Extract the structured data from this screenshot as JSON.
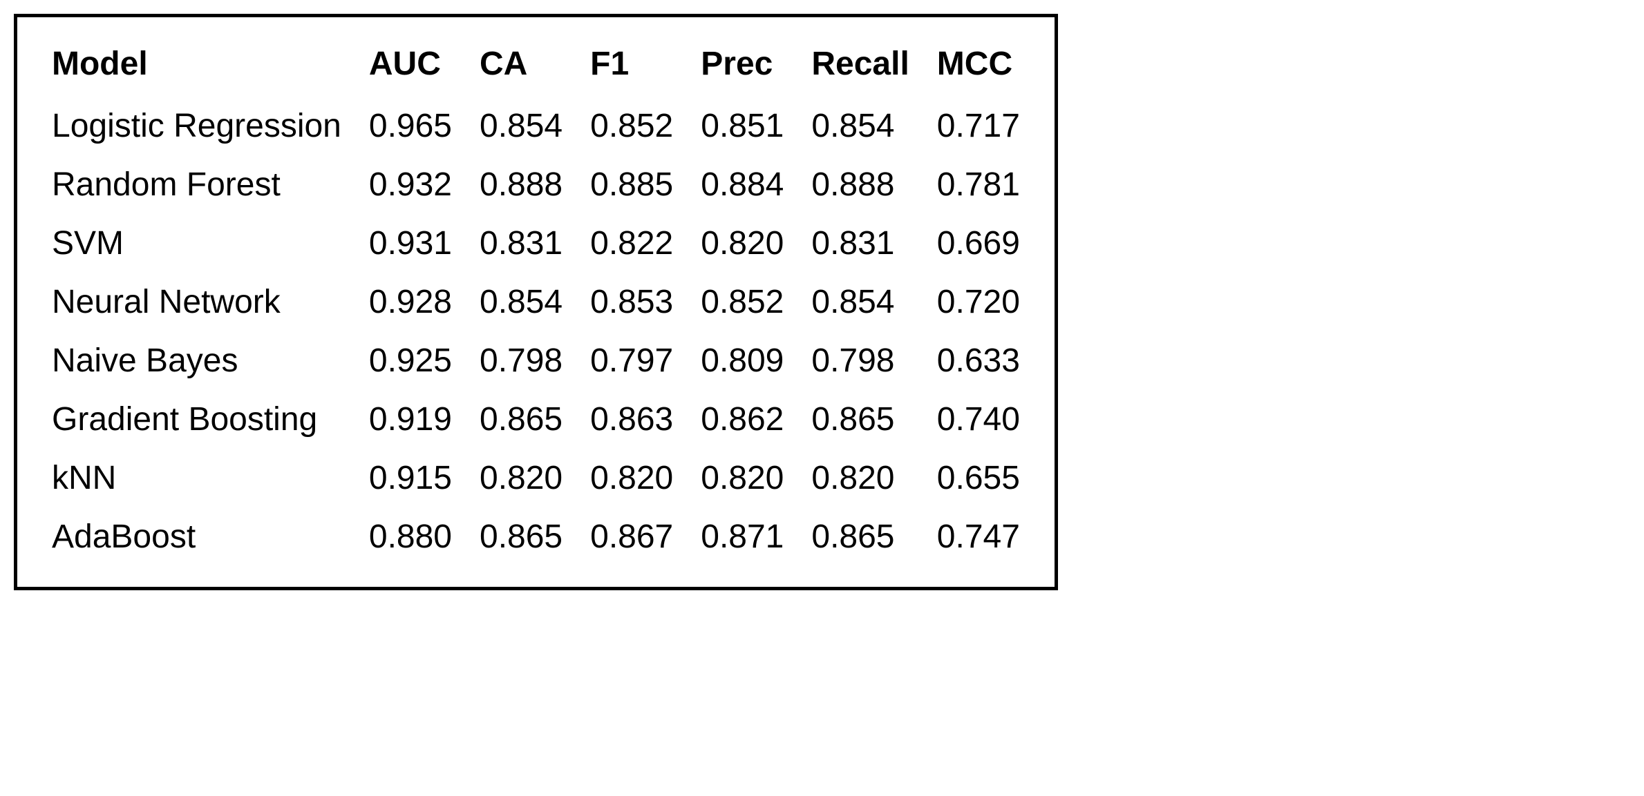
{
  "table": {
    "type": "table",
    "border_color": "#000000",
    "border_width": 5,
    "background_color": "#ffffff",
    "text_color": "#000000",
    "font_family": "Helvetica, Arial, sans-serif",
    "font_size": 48,
    "header_font_weight": 700,
    "columns": [
      {
        "label": "Model",
        "align": "left",
        "type": "text"
      },
      {
        "label": "AUC",
        "align": "left",
        "type": "numeric"
      },
      {
        "label": "CA",
        "align": "left",
        "type": "numeric"
      },
      {
        "label": "F1",
        "align": "left",
        "type": "numeric"
      },
      {
        "label": "Prec",
        "align": "left",
        "type": "numeric"
      },
      {
        "label": "Recall",
        "align": "left",
        "type": "numeric"
      },
      {
        "label": "MCC",
        "align": "left",
        "type": "numeric"
      }
    ],
    "rows": [
      [
        "Logistic Regression",
        "0.965",
        "0.854",
        "0.852",
        "0.851",
        "0.854",
        "0.717"
      ],
      [
        "Random Forest",
        "0.932",
        "0.888",
        "0.885",
        "0.884",
        "0.888",
        "0.781"
      ],
      [
        "SVM",
        "0.931",
        "0.831",
        "0.822",
        "0.820",
        "0.831",
        "0.669"
      ],
      [
        "Neural Network",
        "0.928",
        "0.854",
        "0.853",
        "0.852",
        "0.854",
        "0.720"
      ],
      [
        "Naive Bayes",
        "0.925",
        "0.798",
        "0.797",
        "0.809",
        "0.798",
        "0.633"
      ],
      [
        "Gradient Boosting",
        "0.919",
        "0.865",
        "0.863",
        "0.862",
        "0.865",
        "0.740"
      ],
      [
        "kNN",
        "0.915",
        "0.820",
        "0.820",
        "0.820",
        "0.820",
        "0.655"
      ],
      [
        "AdaBoost",
        "0.880",
        "0.865",
        "0.867",
        "0.871",
        "0.865",
        "0.747"
      ]
    ]
  }
}
